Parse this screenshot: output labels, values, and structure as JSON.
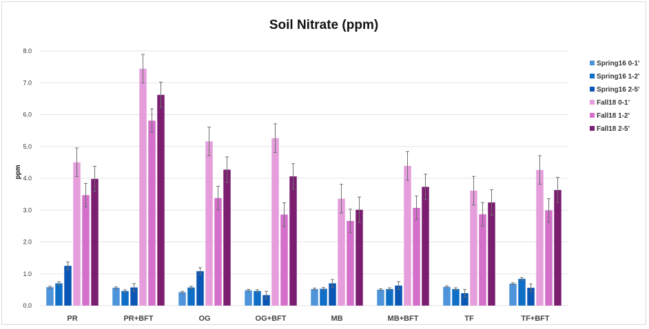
{
  "chart_data": {
    "type": "bar",
    "title": "Soil Nitrate (ppm)",
    "xlabel": "",
    "ylabel": "ppm",
    "ylim": [
      0,
      8
    ],
    "yticks": [
      "0.0",
      "1.0",
      "2.0",
      "3.0",
      "4.0",
      "5.0",
      "6.0",
      "7.0",
      "8.0"
    ],
    "ytick_values": [
      0,
      1,
      2,
      3,
      4,
      5,
      6,
      7,
      8
    ],
    "grid": true,
    "legend_position": "right",
    "error_bars": true,
    "categories": [
      "PR",
      "PR+BFT",
      "OG",
      "OG+BFT",
      "MB",
      "MB+BFT",
      "TF",
      "TF+BFT"
    ],
    "series": [
      {
        "name": "Spring16 0-1'",
        "color": "#4d94db",
        "values": [
          0.58,
          0.56,
          0.42,
          0.48,
          0.52,
          0.5,
          0.59,
          0.69
        ],
        "errors": [
          0.03,
          0.03,
          0.03,
          0.03,
          0.03,
          0.03,
          0.03,
          0.03
        ]
      },
      {
        "name": "Spring16 1-2'",
        "color": "#0f6fc6",
        "values": [
          0.7,
          0.46,
          0.57,
          0.46,
          0.53,
          0.52,
          0.52,
          0.84
        ],
        "errors": [
          0.05,
          0.04,
          0.04,
          0.04,
          0.04,
          0.04,
          0.04,
          0.04
        ]
      },
      {
        "name": "Spring16 2-5'",
        "color": "#0a56b4",
        "values": [
          1.25,
          0.57,
          1.08,
          0.33,
          0.7,
          0.63,
          0.39,
          0.56
        ],
        "errors": [
          0.12,
          0.12,
          0.11,
          0.12,
          0.12,
          0.12,
          0.12,
          0.12
        ]
      },
      {
        "name": "Fall18 0-1'",
        "color": "#e59edb",
        "values": [
          4.5,
          7.44,
          5.16,
          5.26,
          3.36,
          4.39,
          3.61,
          4.26
        ],
        "errors": [
          0.45,
          0.45,
          0.45,
          0.45,
          0.45,
          0.45,
          0.45,
          0.45
        ]
      },
      {
        "name": "Fall18 1-2'",
        "color": "#d46fcb",
        "values": [
          3.47,
          5.81,
          3.38,
          2.86,
          2.66,
          3.07,
          2.87,
          2.99
        ],
        "errors": [
          0.37,
          0.37,
          0.37,
          0.37,
          0.37,
          0.37,
          0.37,
          0.37
        ]
      },
      {
        "name": "Fall18 2-5'",
        "color": "#7b1e70",
        "values": [
          3.98,
          6.62,
          4.27,
          4.06,
          3.01,
          3.73,
          3.24,
          3.63
        ],
        "errors": [
          0.4,
          0.4,
          0.4,
          0.4,
          0.4,
          0.4,
          0.4,
          0.4
        ]
      }
    ]
  }
}
